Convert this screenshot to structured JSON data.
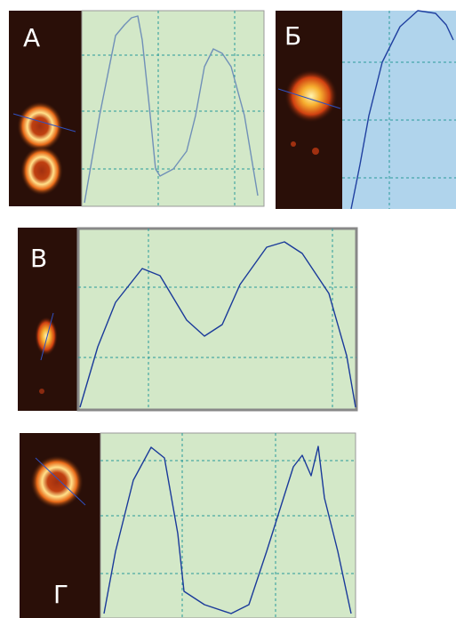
{
  "panels": [
    {
      "label": "А"
    },
    {
      "label": "Б"
    },
    {
      "label": "В"
    },
    {
      "label": "Г"
    }
  ]
}
